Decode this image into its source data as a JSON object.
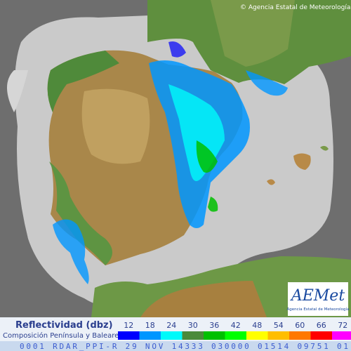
{
  "copyright": "© Agencia Estatal de Meteorología",
  "logo": {
    "name": "AEMet",
    "subtitle": "Agencia Estatal de Meteorología"
  },
  "legend": {
    "title": "Reflectividad (dbz)",
    "subtitle": "Composición Península y Baleares",
    "items": [
      {
        "value": 12,
        "color": "#0000fe"
      },
      {
        "value": 18,
        "color": "#0096ff"
      },
      {
        "value": 24,
        "color": "#00fafa"
      },
      {
        "value": 30,
        "color": "#4a8a3a"
      },
      {
        "value": 36,
        "color": "#00c000"
      },
      {
        "value": 42,
        "color": "#00ff00"
      },
      {
        "value": 48,
        "color": "#ffff00"
      },
      {
        "value": 54,
        "color": "#ffbe00"
      },
      {
        "value": 60,
        "color": "#ff7800"
      },
      {
        "value": 66,
        "color": "#ff0000"
      },
      {
        "value": 72,
        "color": "#ff00ff"
      }
    ]
  },
  "footer": "0001 RDAR_PPI-R 29 NOV 14333 030000 01514 09751 01"
}
